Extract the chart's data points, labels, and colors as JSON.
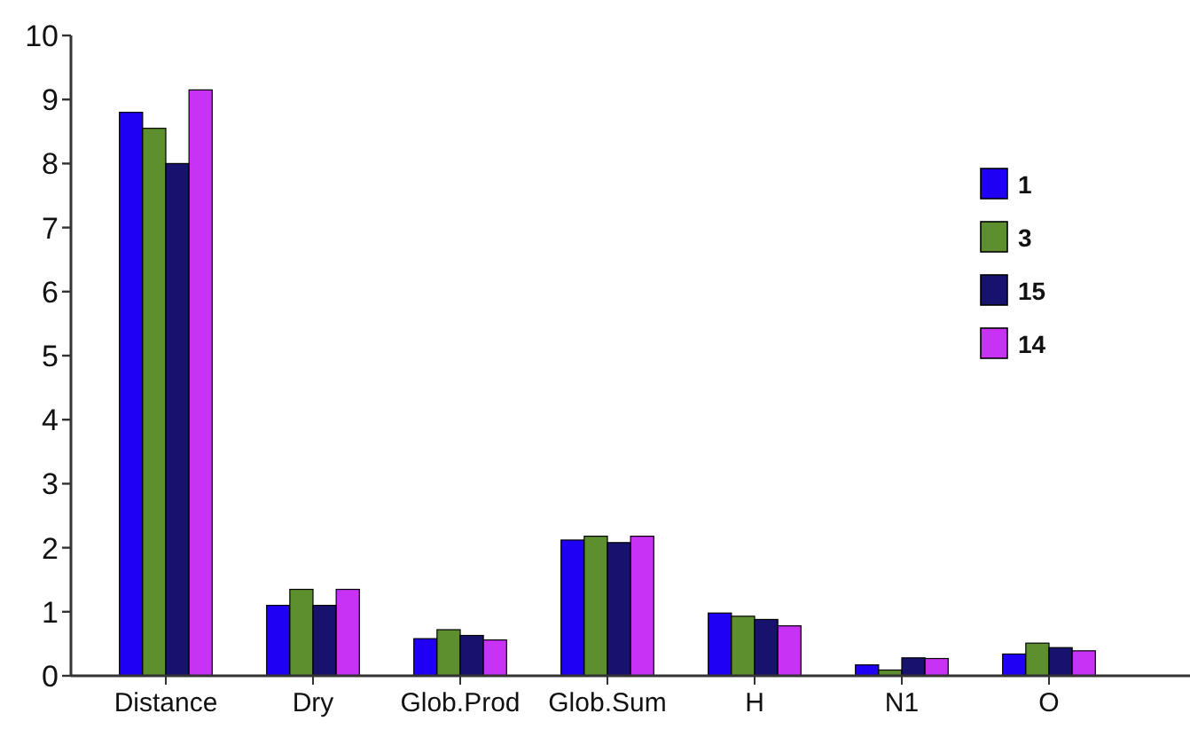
{
  "chart_data": {
    "type": "bar",
    "categories": [
      "Distance",
      "Dry",
      "Glob.Prod",
      "Glob.Sum",
      "H",
      "N1",
      "O"
    ],
    "series": [
      {
        "name": "1",
        "color": "#1f00f5",
        "values": [
          8.8,
          1.1,
          0.58,
          2.12,
          0.98,
          0.17,
          0.34
        ]
      },
      {
        "name": "3",
        "color": "#5e8f2e",
        "values": [
          8.55,
          1.35,
          0.72,
          2.18,
          0.93,
          0.09,
          0.51
        ]
      },
      {
        "name": "15",
        "color": "#17126e",
        "values": [
          8.0,
          1.1,
          0.63,
          2.08,
          0.88,
          0.28,
          0.44
        ]
      },
      {
        "name": "14",
        "color": "#c832f5",
        "values": [
          9.15,
          1.35,
          0.56,
          2.18,
          0.78,
          0.27,
          0.39
        ]
      }
    ],
    "ylim": [
      0,
      10
    ],
    "yticks": [
      0,
      1,
      2,
      3,
      4,
      5,
      6,
      7,
      8,
      9,
      10
    ],
    "grid": false,
    "legend": "top right"
  }
}
